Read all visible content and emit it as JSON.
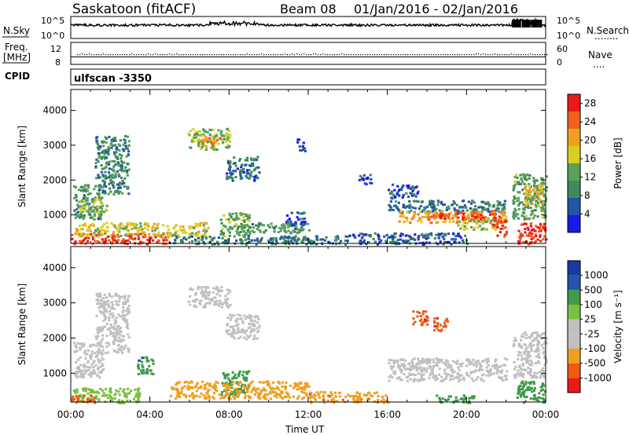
{
  "header": {
    "title": "Saskatoon (fitACF)",
    "beam": "Beam 08",
    "date_range": "01/Jan/2016 - 02/Jan/2016"
  },
  "noise_panel": {
    "left_label": "N.Sky",
    "left_ticks": [
      "10^5",
      "10^0"
    ],
    "right_ticks": [
      "10^5",
      "10^0"
    ],
    "right_label": "N.Search",
    "right_dots": "........"
  },
  "freq_panel": {
    "left_label_line1": "Freq.",
    "left_label_line2": "[MHz]",
    "left_ticks": [
      "12",
      "8"
    ],
    "right_ticks": [
      "60",
      "0"
    ],
    "right_label": "Nave",
    "right_dots": "...."
  },
  "cpid_panel": {
    "label": "CPID",
    "program": "ulfscan -3350"
  },
  "colors": {
    "power_scale": [
      "#1a1ae6",
      "#2255aa",
      "#3f8a5a",
      "#5aa05a",
      "#d8d020",
      "#f0a020",
      "#f06020",
      "#e81a1a"
    ],
    "velocity_scale": [
      "#e81a1a",
      "#f05a14",
      "#f0a020",
      "#c0c0c0",
      "#c0c0c0",
      "#7ac040",
      "#3f9a4a",
      "#2255aa",
      "#1a3aa0"
    ]
  },
  "chart_data": [
    {
      "type": "heatmap",
      "name_of_panel": "power",
      "ylabel": "Slant Range [km]",
      "yticks": [
        "1000",
        "2000",
        "3000",
        "4000"
      ],
      "ylim": [
        180,
        4600
      ],
      "x_start_label": "00:00",
      "colorbar_label": "Power [dB]",
      "colorbar_ticks": [
        "4",
        "8",
        "12",
        "16",
        "20",
        "24",
        "28"
      ],
      "colorbar_range": [
        0,
        30
      ],
      "regions": [
        {
          "x0": 0.0,
          "x1": 5.0,
          "y0": 180,
          "y1": 500,
          "value": 27
        },
        {
          "x0": 0.2,
          "x1": 7.0,
          "y0": 400,
          "y1": 800,
          "value": 17
        },
        {
          "x0": 0.1,
          "x1": 1.6,
          "y0": 900,
          "y1": 1900,
          "value": 11
        },
        {
          "x0": 0.4,
          "x1": 1.8,
          "y0": 1100,
          "y1": 1500,
          "value": 15
        },
        {
          "x0": 1.2,
          "x1": 2.9,
          "y0": 1600,
          "y1": 3300,
          "value": 9
        },
        {
          "x0": 5.9,
          "x1": 8.0,
          "y0": 2900,
          "y1": 3500,
          "value": 14
        },
        {
          "x0": 6.4,
          "x1": 7.5,
          "y0": 3000,
          "y1": 3300,
          "value": 20
        },
        {
          "x0": 7.8,
          "x1": 9.5,
          "y0": 2000,
          "y1": 2700,
          "value": 7
        },
        {
          "x0": 7.5,
          "x1": 9.0,
          "y0": 400,
          "y1": 1100,
          "value": 13
        },
        {
          "x0": 8.5,
          "x1": 12.0,
          "y0": 500,
          "y1": 800,
          "value": 11
        },
        {
          "x0": 5.0,
          "x1": 14.0,
          "y0": 180,
          "y1": 420,
          "value": 8
        },
        {
          "x0": 14.0,
          "x1": 20.0,
          "y0": 180,
          "y1": 500,
          "value": 6
        },
        {
          "x0": 16.0,
          "x1": 22.0,
          "y0": 1100,
          "y1": 1450,
          "value": 8
        },
        {
          "x0": 16.5,
          "x1": 22.0,
          "y0": 800,
          "y1": 1150,
          "value": 21
        },
        {
          "x0": 18.0,
          "x1": 21.5,
          "y0": 900,
          "y1": 1100,
          "value": 26
        },
        {
          "x0": 19.5,
          "x1": 21.5,
          "y0": 600,
          "y1": 900,
          "value": 15
        },
        {
          "x0": 21.3,
          "x1": 22.0,
          "y0": 400,
          "y1": 1000,
          "value": 27
        },
        {
          "x0": 22.3,
          "x1": 24.0,
          "y0": 900,
          "y1": 2200,
          "value": 12
        },
        {
          "x0": 22.8,
          "x1": 23.8,
          "y0": 1300,
          "y1": 1900,
          "value": 18
        },
        {
          "x0": 22.5,
          "x1": 24.0,
          "y0": 180,
          "y1": 800,
          "value": 27
        },
        {
          "x0": 16.0,
          "x1": 17.5,
          "y0": 1500,
          "y1": 1900,
          "value": 5
        },
        {
          "x0": 14.5,
          "x1": 15.2,
          "y0": 1900,
          "y1": 2200,
          "value": 5
        },
        {
          "x0": 11.4,
          "x1": 11.8,
          "y0": 2800,
          "y1": 3200,
          "value": 5
        },
        {
          "x0": 10.8,
          "x1": 11.8,
          "y0": 700,
          "y1": 1100,
          "value": 5
        }
      ]
    },
    {
      "type": "heatmap",
      "name_of_panel": "velocity",
      "ylabel": "Slant Range [km]",
      "yticks": [
        "1000",
        "2000",
        "3000",
        "4000"
      ],
      "ylim": [
        180,
        4600
      ],
      "x": [
        "00:00",
        "04:00",
        "08:00",
        "12:00",
        "16:00",
        "20:00",
        "00:00"
      ],
      "xlabel": "Time UT",
      "colorbar_label": "Velocity [m s⁻¹]",
      "colorbar_ticks": [
        "1000",
        "500",
        "100",
        "25",
        "-25",
        "-100",
        "-500",
        "-1000"
      ],
      "regions": [
        {
          "x0": 0.0,
          "x1": 3.5,
          "y0": 180,
          "y1": 600,
          "value": 60
        },
        {
          "x0": 0.0,
          "x1": 1.2,
          "y0": 180,
          "y1": 400,
          "value": -150
        },
        {
          "x0": 0.1,
          "x1": 1.6,
          "y0": 900,
          "y1": 1900,
          "value": 0
        },
        {
          "x0": 1.2,
          "x1": 2.9,
          "y0": 1600,
          "y1": 3300,
          "value": 0
        },
        {
          "x0": 5.9,
          "x1": 8.0,
          "y0": 2900,
          "y1": 3500,
          "value": 0
        },
        {
          "x0": 7.8,
          "x1": 9.5,
          "y0": 2000,
          "y1": 2700,
          "value": 0
        },
        {
          "x0": 7.5,
          "x1": 9.0,
          "y0": 400,
          "y1": 1100,
          "value": 300
        },
        {
          "x0": 5.0,
          "x1": 12.0,
          "y0": 300,
          "y1": 800,
          "value": -60
        },
        {
          "x0": 12.0,
          "x1": 16.0,
          "y0": 180,
          "y1": 500,
          "value": -80
        },
        {
          "x0": 16.0,
          "x1": 22.0,
          "y0": 800,
          "y1": 1450,
          "value": 0
        },
        {
          "x0": 22.3,
          "x1": 24.0,
          "y0": 900,
          "y1": 2200,
          "value": 0
        },
        {
          "x0": 22.5,
          "x1": 24.0,
          "y0": 180,
          "y1": 800,
          "value": 150
        },
        {
          "x0": 17.2,
          "x1": 18.0,
          "y0": 2400,
          "y1": 2800,
          "value": -400
        },
        {
          "x0": 18.3,
          "x1": 19.0,
          "y0": 2200,
          "y1": 2600,
          "value": -400
        },
        {
          "x0": 18.4,
          "x1": 20.4,
          "y0": 180,
          "y1": 400,
          "value": 150
        },
        {
          "x0": 3.3,
          "x1": 4.2,
          "y0": 1000,
          "y1": 1500,
          "value": 400
        }
      ]
    }
  ]
}
